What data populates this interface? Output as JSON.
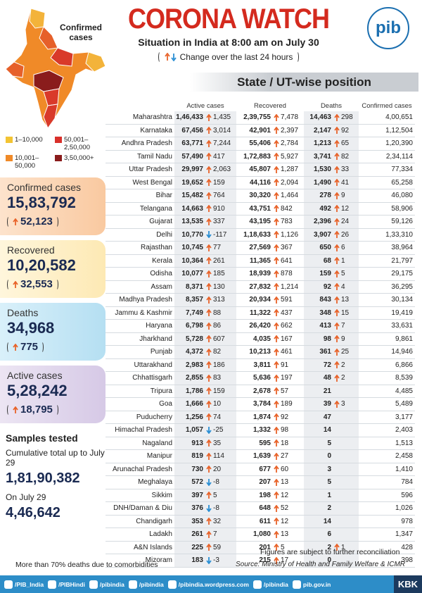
{
  "header": {
    "title": "CORONA WATCH",
    "subtitle": "Situation in India at 8:00 am on July 30",
    "note": "Change over the last 24 hours",
    "logo": "pib"
  },
  "map": {
    "label": "Confirmed cases",
    "legend": [
      "1–10,000",
      "10,001–50,000",
      "50,001–2,50,000",
      "3,50,000+"
    ]
  },
  "summary": [
    {
      "label": "Confirmed cases",
      "value": "15,83,792",
      "change": "52,123"
    },
    {
      "label": "Recovered",
      "value": "10,20,582",
      "change": "32,553"
    },
    {
      "label": "Deaths",
      "value": "34,968",
      "change": "775"
    },
    {
      "label": "Active cases",
      "value": "5,28,242",
      "change": "18,795"
    }
  ],
  "samples": {
    "title": "Samples tested",
    "cumulative_label": "Cumulative total up to July 29",
    "cumulative": "1,81,90,382",
    "day_label": "On July 29",
    "day": "4,46,642"
  },
  "table": {
    "title": "State / UT-wise position",
    "columns": [
      "Active cases",
      "Recovered",
      "Deaths",
      "Confirmed cases"
    ],
    "rows": [
      [
        "Maharashtra",
        "1,46,433",
        "1,435",
        "2,39,755",
        "7,478",
        "14,463",
        "298",
        "4,00,651"
      ],
      [
        "Karnataka",
        "67,456",
        "3,014",
        "42,901",
        "2,397",
        "2,147",
        "92",
        "1,12,504"
      ],
      [
        "Andhra Pradesh",
        "63,771",
        "7,244",
        "55,406",
        "2,784",
        "1,213",
        "65",
        "1,20,390"
      ],
      [
        "Tamil Nadu",
        "57,490",
        "417",
        "1,72,883",
        "5,927",
        "3,741",
        "82",
        "2,34,114"
      ],
      [
        "Uttar Pradesh",
        "29,997",
        "2,063",
        "45,807",
        "1,287",
        "1,530",
        "33",
        "77,334"
      ],
      [
        "West Bengal",
        "19,652",
        "159",
        "44,116",
        "2,094",
        "1,490",
        "41",
        "65,258"
      ],
      [
        "Bihar",
        "15,482",
        "764",
        "30,320",
        "1,464",
        "278",
        "9",
        "46,080"
      ],
      [
        "Telangana",
        "14,663",
        "910",
        "43,751",
        "842",
        "492",
        "12",
        "58,906"
      ],
      [
        "Gujarat",
        "13,535",
        "337",
        "43,195",
        "783",
        "2,396",
        "24",
        "59,126"
      ],
      [
        "Delhi",
        "10,770",
        "-117",
        "1,18,633",
        "1,126",
        "3,907",
        "26",
        "1,33,310"
      ],
      [
        "Rajasthan",
        "10,745",
        "77",
        "27,569",
        "367",
        "650",
        "6",
        "38,964"
      ],
      [
        "Kerala",
        "10,364",
        "261",
        "11,365",
        "641",
        "68",
        "1",
        "21,797"
      ],
      [
        "Odisha",
        "10,077",
        "185",
        "18,939",
        "878",
        "159",
        "5",
        "29,175"
      ],
      [
        "Assam",
        "8,371",
        "130",
        "27,832",
        "1,214",
        "92",
        "4",
        "36,295"
      ],
      [
        "Madhya Pradesh",
        "8,357",
        "313",
        "20,934",
        "591",
        "843",
        "13",
        "30,134"
      ],
      [
        "Jammu & Kashmir",
        "7,749",
        "88",
        "11,322",
        "437",
        "348",
        "15",
        "19,419"
      ],
      [
        "Haryana",
        "6,798",
        "86",
        "26,420",
        "662",
        "413",
        "7",
        "33,631"
      ],
      [
        "Jharkhand",
        "5,728",
        "607",
        "4,035",
        "167",
        "98",
        "9",
        "9,861"
      ],
      [
        "Punjab",
        "4,372",
        "82",
        "10,213",
        "461",
        "361",
        "25",
        "14,946"
      ],
      [
        "Uttarakhand",
        "2,983",
        "186",
        "3,811",
        "91",
        "72",
        "2",
        "6,866"
      ],
      [
        "Chhattisgarh",
        "2,855",
        "83",
        "5,636",
        "197",
        "48",
        "2",
        "8,539"
      ],
      [
        "Tripura",
        "1,786",
        "159",
        "2,678",
        "57",
        "21",
        null,
        "4,485"
      ],
      [
        "Goa",
        "1,666",
        "10",
        "3,784",
        "189",
        "39",
        "3",
        "5,489"
      ],
      [
        "Puducherry",
        "1,256",
        "74",
        "1,874",
        "92",
        "47",
        null,
        "3,177"
      ],
      [
        "Himachal Pradesh",
        "1,057",
        "-25",
        "1,332",
        "98",
        "14",
        null,
        "2,403"
      ],
      [
        "Nagaland",
        "913",
        "35",
        "595",
        "18",
        "5",
        null,
        "1,513"
      ],
      [
        "Manipur",
        "819",
        "114",
        "1,639",
        "27",
        "0",
        null,
        "2,458"
      ],
      [
        "Arunachal Pradesh",
        "730",
        "20",
        "677",
        "60",
        "3",
        null,
        "1,410"
      ],
      [
        "Meghalaya",
        "572",
        "-8",
        "207",
        "13",
        "5",
        null,
        "784"
      ],
      [
        "Sikkim",
        "397",
        "5",
        "198",
        "12",
        "1",
        null,
        "596"
      ],
      [
        "DNH/Daman & Diu",
        "376",
        "-8",
        "648",
        "52",
        "2",
        null,
        "1,026"
      ],
      [
        "Chandigarh",
        "353",
        "32",
        "611",
        "12",
        "14",
        null,
        "978"
      ],
      [
        "Ladakh",
        "261",
        "7",
        "1,080",
        "13",
        "6",
        null,
        "1,347"
      ],
      [
        "A&N Islands",
        "225",
        "59",
        "201",
        "5",
        "2",
        "1",
        "428"
      ],
      [
        "Mizoram",
        "183",
        "-3",
        "215",
        "17",
        "0",
        null,
        "398"
      ]
    ]
  },
  "footer": {
    "reconciliation": "Figures are subject to further reconciliation",
    "source": "Source: Ministry of Health and Family Welfare & ICMR",
    "comorbidity": "More than 70% deaths due to comorbidities"
  },
  "social": [
    "/PIB_India",
    "/PIBHindi",
    "/pibindia",
    "/pibindia",
    "/pibindia.wordpress.com",
    "/pibindia",
    "pib.gov.in"
  ],
  "brand": "KBK"
}
